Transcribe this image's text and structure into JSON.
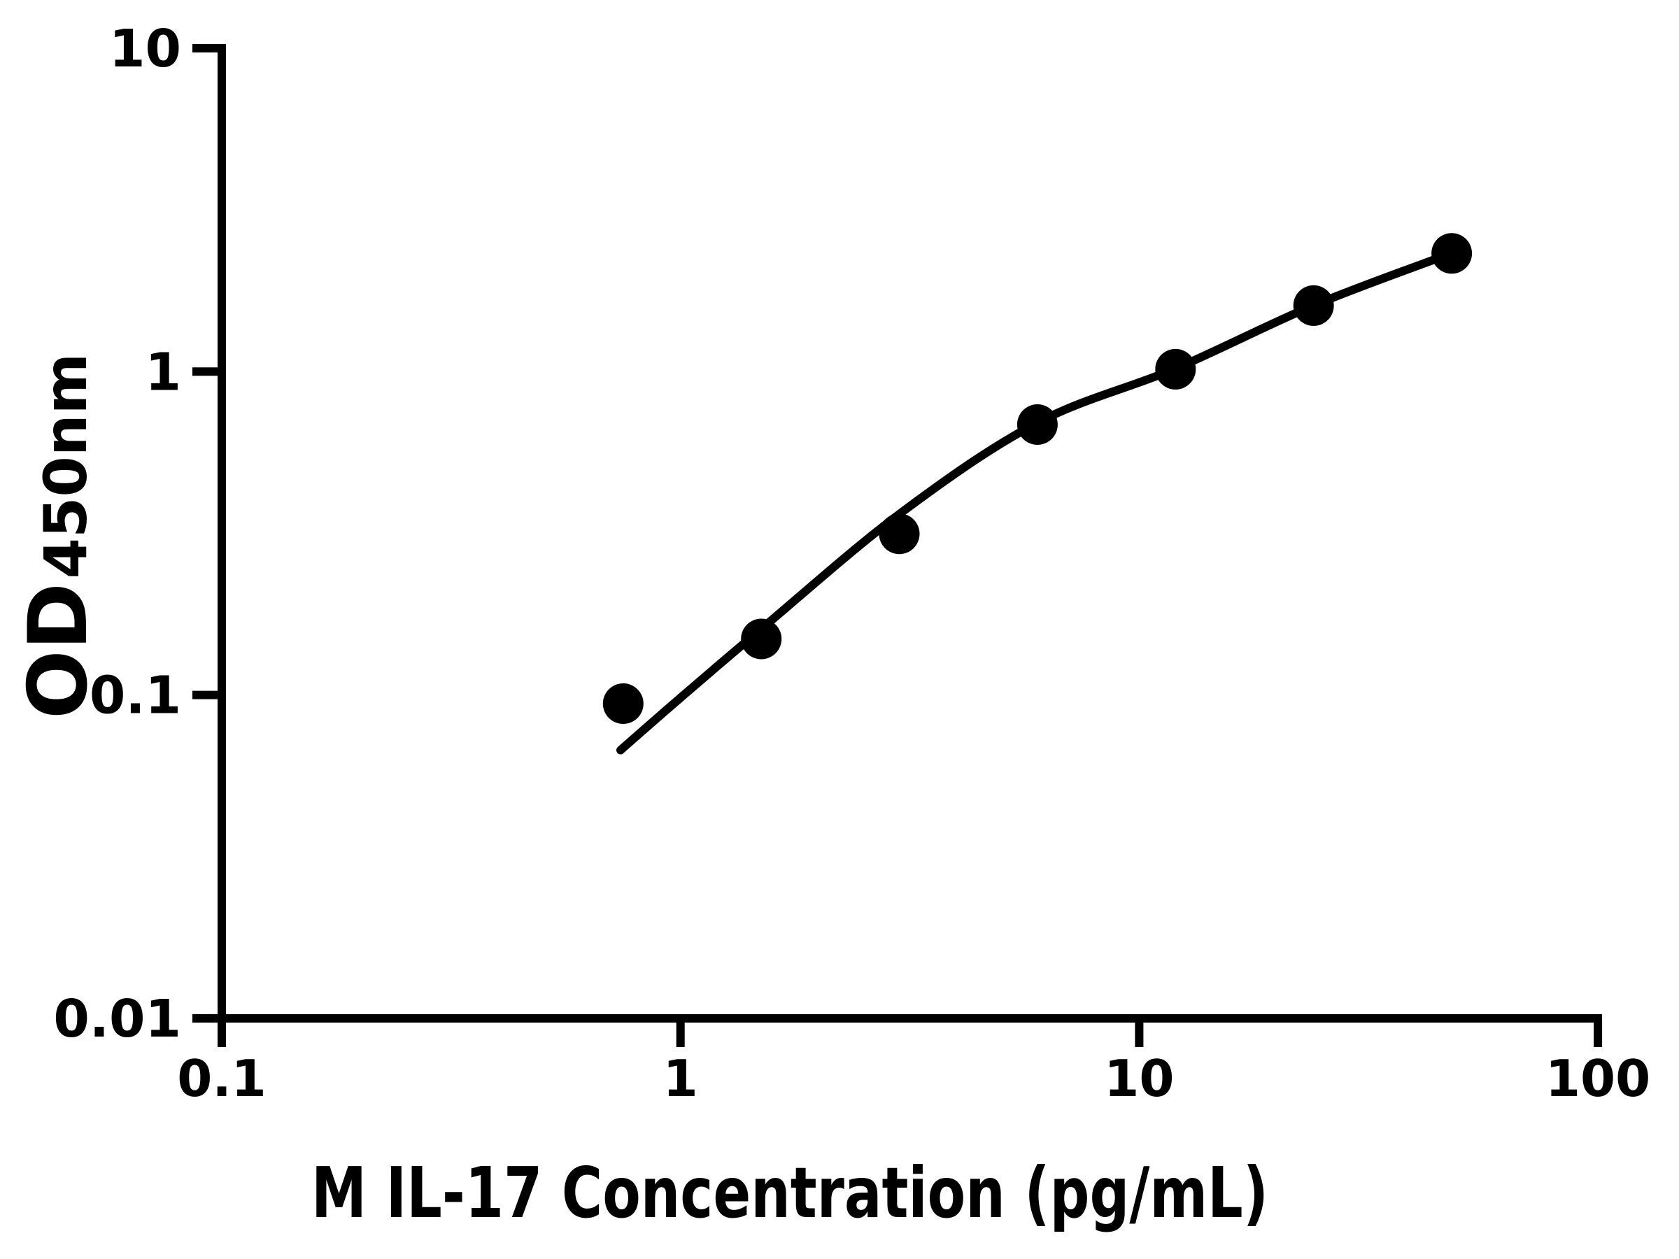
{
  "figure": {
    "background_color": "#ffffff",
    "ink_color": "#000000"
  },
  "chart_data": {
    "type": "scatter",
    "title": "",
    "xlabel": "M IL-17 Concentration (pg/mL)",
    "ylabel_main": "OD",
    "ylabel_sub": "450nm",
    "x_scale": "log",
    "y_scale": "log",
    "xlim": [
      0.1,
      100
    ],
    "ylim": [
      0.01,
      10
    ],
    "x_ticks": [
      0.1,
      1,
      10,
      100
    ],
    "x_tick_labels": [
      "0.1",
      "1",
      "10",
      "100"
    ],
    "y_ticks": [
      10,
      1,
      0.1,
      0.01
    ],
    "y_tick_labels": [
      "10",
      "1",
      "0.1",
      "0.01"
    ],
    "grid": false,
    "legend": null,
    "marker_shape": "filled-circle",
    "marker_color": "#000000",
    "curve_color": "#000000",
    "points": [
      {
        "x": 0.75,
        "y": 0.094
      },
      {
        "x": 1.5,
        "y": 0.149
      },
      {
        "x": 3,
        "y": 0.315
      },
      {
        "x": 6,
        "y": 0.686
      },
      {
        "x": 12,
        "y": 1.017
      },
      {
        "x": 24,
        "y": 1.6
      },
      {
        "x": 48,
        "y": 2.32
      }
    ],
    "fit_curve": [
      [
        0.74,
        0.0675
      ],
      [
        1.0,
        0.098
      ],
      [
        1.5,
        0.16
      ],
      [
        3.0,
        0.3625
      ],
      [
        6.0,
        0.695
      ],
      [
        12,
        1.022
      ],
      [
        24,
        1.602
      ],
      [
        48,
        2.324
      ]
    ]
  }
}
